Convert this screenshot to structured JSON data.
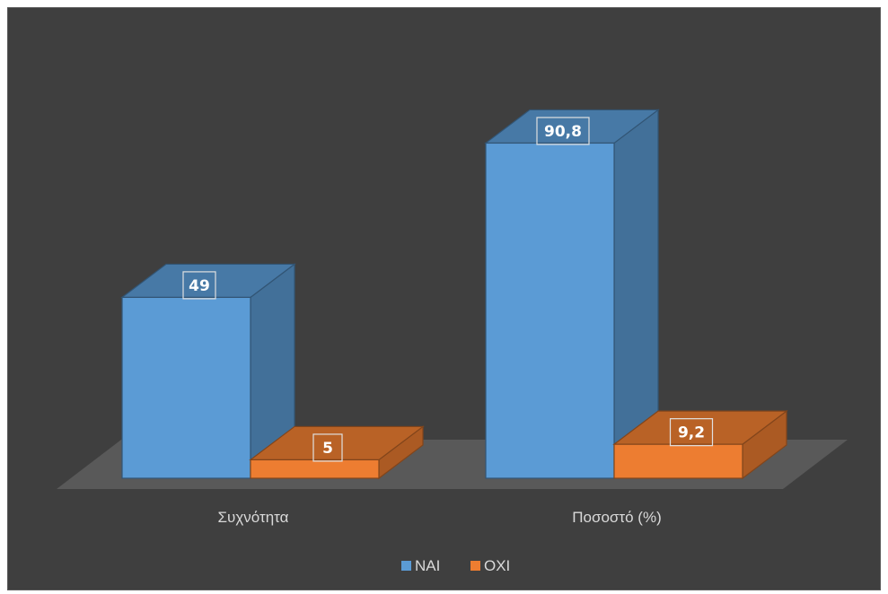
{
  "chart_data": {
    "type": "bar",
    "style": "3d-clustered-column",
    "categories": [
      "Συχνότητα",
      "Ποσοστό  (%)"
    ],
    "series": [
      {
        "name": "ΝΑΙ",
        "values": [
          49,
          90.8
        ],
        "labels": [
          "49",
          "90,8"
        ],
        "color": "#5b9bd5"
      },
      {
        "name": "ΟΧΙ",
        "values": [
          5,
          9.2
        ],
        "labels": [
          "5",
          "9,2"
        ],
        "color": "#ed7d31"
      }
    ],
    "ylim": [
      0,
      100
    ],
    "grid": false,
    "legend": "bottom",
    "background": "#404040"
  }
}
